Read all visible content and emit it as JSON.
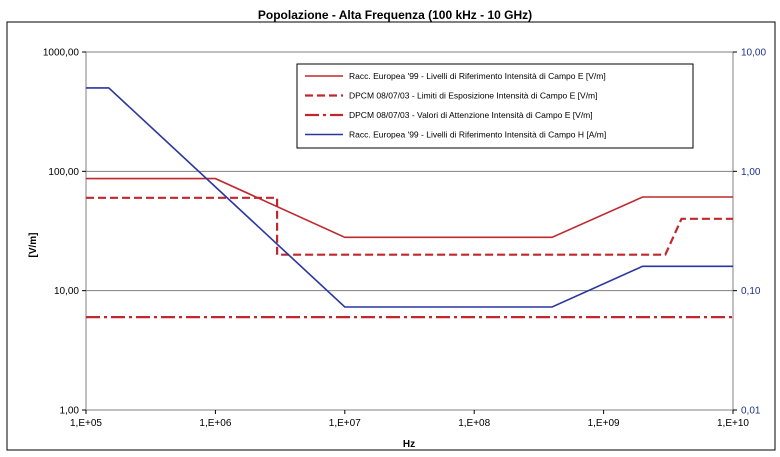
{
  "chart_data": {
    "type": "line",
    "title": "Popolazione - Alta Frequenza (100 kHz - 10 GHz)",
    "xlabel": "Hz",
    "ylabel": "[V/m]",
    "x_scale": "log",
    "y_scale": "log",
    "y2_scale": "log",
    "xlim": [
      100000,
      10000000000
    ],
    "ylim": [
      1,
      1000
    ],
    "y2lim": [
      0.01,
      10
    ],
    "x_ticks": [
      100000,
      1000000,
      10000000,
      100000000,
      1000000000,
      10000000000
    ],
    "x_tick_labels": [
      "1,E+05",
      "1,E+06",
      "1,E+07",
      "1,E+08",
      "1,E+09",
      "1,E+10"
    ],
    "y_ticks": [
      1,
      10,
      100,
      1000
    ],
    "y_tick_labels": [
      "1,00",
      "10,00",
      "100,00",
      "1000,00"
    ],
    "y2_ticks": [
      0.01,
      0.1,
      1,
      10
    ],
    "y2_tick_labels": [
      "0,01",
      "0,10",
      "1,00",
      "10,00"
    ],
    "grid": "horizontal major lines",
    "legend_position": "top-right",
    "series": [
      {
        "name": "Racc. Europea '99 - Livelli di Riferimento Intensità di Campo E [V/m]",
        "color": "#c0282d",
        "style": "solid",
        "axis": "left",
        "x": [
          100000,
          1000000,
          10000000,
          400000000,
          2000000000,
          10000000000
        ],
        "y": [
          87,
          87,
          28,
          28,
          61,
          61
        ]
      },
      {
        "name": "DPCM 08/07/03 - Limiti di Esposizione Intensità di Campo E [V/m]",
        "color": "#c0282d",
        "style": "dashed",
        "axis": "left",
        "x": [
          100000,
          3000000,
          3000000,
          3000000000,
          4000000000,
          10000000000
        ],
        "y": [
          60,
          60,
          20,
          20,
          40,
          40
        ]
      },
      {
        "name": "DPCM 08/07/03 - Valori di Attenzione Intensità di Campo E [V/m]",
        "color": "#c0282d",
        "style": "dashdot",
        "axis": "left",
        "x": [
          100000,
          10000000000
        ],
        "y": [
          6,
          6
        ]
      },
      {
        "name": "Racc. Europea '99  - Livelli di Riferimento Intensità di Campo H [A/m]",
        "color": "#2b35a0",
        "style": "solid",
        "axis": "right",
        "x": [
          100000,
          150000,
          10000000,
          400000000,
          2000000000,
          10000000000
        ],
        "y": [
          5,
          5,
          0.073,
          0.073,
          0.16,
          0.16
        ]
      }
    ]
  }
}
